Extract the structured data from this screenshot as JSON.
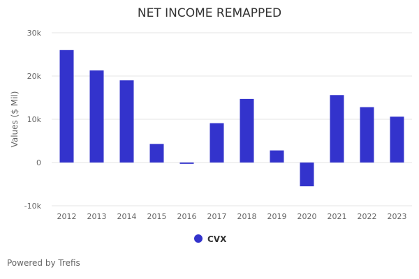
{
  "chart_data": {
    "type": "bar",
    "title": "NET INCOME REMAPPED",
    "ylabel": "Values ($ Mil)",
    "xlabel": "",
    "categories": [
      "2012",
      "2013",
      "2014",
      "2015",
      "2016",
      "2017",
      "2018",
      "2019",
      "2020",
      "2021",
      "2022",
      "2023"
    ],
    "series": [
      {
        "name": "CVX",
        "color": "#3333cc",
        "values": [
          26000,
          21300,
          19000,
          4300,
          -300,
          9100,
          14700,
          2800,
          -5500,
          15600,
          12800,
          10600
        ]
      }
    ],
    "ylim": [
      -10000,
      30000
    ],
    "yticks": [
      30000,
      20000,
      10000,
      0,
      -10000
    ],
    "ytick_labels": [
      "30k",
      "20k",
      "10k",
      "0",
      "-10k"
    ],
    "grid": true,
    "legend": "bottom-center"
  },
  "credits": "Powered by Trefis"
}
